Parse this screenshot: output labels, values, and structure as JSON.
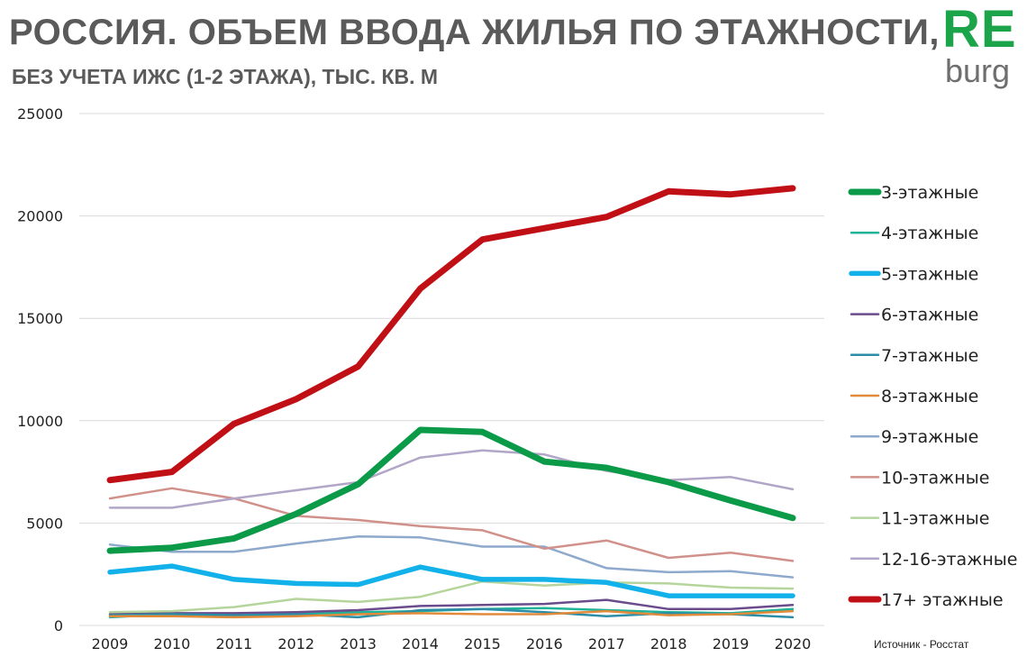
{
  "header": {
    "title": "РОССИЯ. ОБЪЕМ ВВОДА ЖИЛЬЯ ПО ЭТАЖНОСТИ,",
    "subtitle": "БЕЗ УЧЕТА ИЖС (1-2 ЭТАЖА), ТЫС. КВ. М"
  },
  "logo": {
    "top": "RE",
    "bottom": "burg",
    "top_color": "#1ca44a",
    "bottom_color": "#6e6e6e"
  },
  "source": "Источник  - Росстат",
  "chart_data": {
    "type": "line",
    "title": "РОССИЯ. ОБЪЕМ ВВОДА ЖИЛЬЯ ПО ЭТАЖНОСТИ,",
    "subtitle": "БЕЗ УЧЕТА ИЖС (1-2 ЭТАЖА), ТЫС. КВ. М",
    "xlabel": "",
    "ylabel": "",
    "x": [
      "2009",
      "2010",
      "2011",
      "2012",
      "2013",
      "2014",
      "2015",
      "2016",
      "2017",
      "2018",
      "2019",
      "2020"
    ],
    "ylim": [
      0,
      25000
    ],
    "yticks": [
      "0",
      "5000",
      "10000",
      "15000",
      "20000",
      "25000"
    ],
    "grid": "horizontal",
    "legend": "right",
    "series": [
      {
        "name": "3-этажные",
        "color": "#0a9a48",
        "weight": "thick",
        "values": [
          3650,
          3800,
          4250,
          5450,
          6900,
          9550,
          9450,
          8000,
          7700,
          7000,
          6100,
          5250
        ]
      },
      {
        "name": "4-этажные",
        "color": "#1fb39a",
        "weight": "thin",
        "values": [
          400,
          550,
          450,
          550,
          650,
          700,
          800,
          850,
          750,
          650,
          600,
          800
        ]
      },
      {
        "name": "5-этажные",
        "color": "#12b1ea",
        "weight": "medium",
        "values": [
          2600,
          2900,
          2250,
          2050,
          2000,
          2850,
          2250,
          2250,
          2100,
          1450,
          1450,
          1450
        ]
      },
      {
        "name": "6-этажные",
        "color": "#6a4c8c",
        "weight": "thin",
        "values": [
          550,
          600,
          600,
          650,
          750,
          950,
          1000,
          1050,
          1250,
          800,
          800,
          1000
        ]
      },
      {
        "name": "7-этажные",
        "color": "#2b8ea6",
        "weight": "thin",
        "values": [
          500,
          550,
          500,
          550,
          400,
          750,
          800,
          650,
          450,
          600,
          550,
          400
        ]
      },
      {
        "name": "8-этажные",
        "color": "#e08a3a",
        "weight": "thin",
        "values": [
          450,
          450,
          400,
          450,
          550,
          600,
          550,
          550,
          700,
          500,
          550,
          700
        ]
      },
      {
        "name": "9-этажные",
        "color": "#8ea9cc",
        "weight": "thin",
        "values": [
          3950,
          3600,
          3600,
          4000,
          4350,
          4300,
          3850,
          3850,
          2800,
          2600,
          2650,
          2350
        ]
      },
      {
        "name": "10-этажные",
        "color": "#d1918b",
        "weight": "thin",
        "values": [
          6200,
          6700,
          6200,
          5350,
          5150,
          4850,
          4650,
          3750,
          4150,
          3300,
          3550,
          3150
        ]
      },
      {
        "name": "11-этажные",
        "color": "#b5d59c",
        "weight": "thin",
        "values": [
          650,
          700,
          900,
          1300,
          1150,
          1400,
          2150,
          1950,
          2100,
          2050,
          1850,
          1800
        ]
      },
      {
        "name": "12-16-этажные",
        "color": "#b2a6c8",
        "weight": "thin",
        "values": [
          5750,
          5750,
          6200,
          6600,
          7000,
          8200,
          8550,
          8350,
          7550,
          7100,
          7250,
          6650
        ]
      },
      {
        "name": "17+  этажные",
        "color": "#c10f16",
        "weight": "thick",
        "values": [
          7100,
          7500,
          9850,
          11050,
          12650,
          16450,
          18850,
          19400,
          19950,
          21200,
          21050,
          21350
        ]
      }
    ]
  }
}
